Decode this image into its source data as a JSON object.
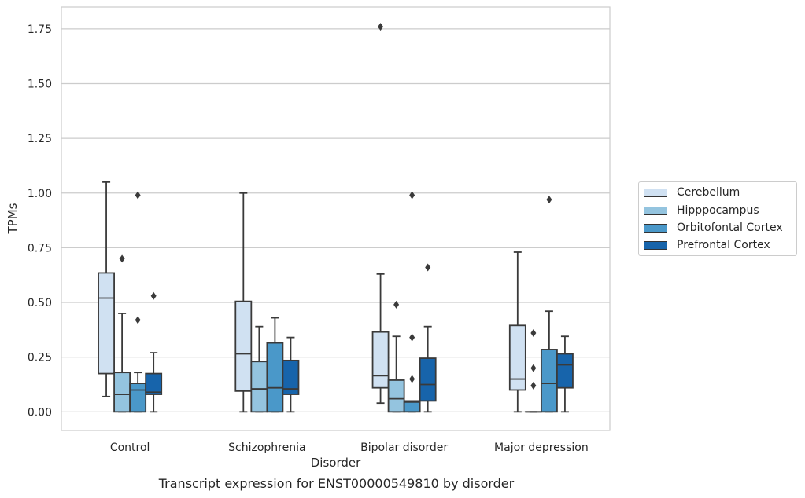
{
  "caption": "Transcript expression for ENST00000549810 by disorder",
  "chart_data": {
    "type": "box",
    "title": "",
    "xlabel": "Disorder",
    "ylabel": "TPMs",
    "ylim": [
      -0.085,
      1.85
    ],
    "yticks": [
      0.0,
      0.25,
      0.5,
      0.75,
      1.0,
      1.25,
      1.5,
      1.75
    ],
    "ytick_labels": [
      "0.00",
      "0.25",
      "0.50",
      "0.75",
      "1.00",
      "1.25",
      "1.50",
      "1.75"
    ],
    "grid": "horizontal",
    "legend_position": "right",
    "categories": [
      "Control",
      "Schizophrenia",
      "Bipolar disorder",
      "Major depression"
    ],
    "series": [
      {
        "name": "Cerebellum",
        "color": "#d0e1f2",
        "boxes": [
          {
            "whislo": 0.07,
            "q1": 0.175,
            "med": 0.52,
            "q3": 0.635,
            "whishi": 1.05,
            "fliers": []
          },
          {
            "whislo": 0.0,
            "q1": 0.095,
            "med": 0.265,
            "q3": 0.505,
            "whishi": 1.0,
            "fliers": []
          },
          {
            "whislo": 0.04,
            "q1": 0.11,
            "med": 0.165,
            "q3": 0.365,
            "whishi": 0.63,
            "fliers": [
              1.76
            ]
          },
          {
            "whislo": 0.0,
            "q1": 0.1,
            "med": 0.15,
            "q3": 0.395,
            "whishi": 0.73,
            "fliers": []
          }
        ]
      },
      {
        "name": "Hipppocampus",
        "color": "#94c4df",
        "boxes": [
          {
            "whislo": 0.0,
            "q1": 0.0,
            "med": 0.08,
            "q3": 0.18,
            "whishi": 0.45,
            "fliers": [
              0.7
            ]
          },
          {
            "whislo": 0.0,
            "q1": 0.0,
            "med": 0.105,
            "q3": 0.23,
            "whishi": 0.39,
            "fliers": []
          },
          {
            "whislo": 0.0,
            "q1": 0.0,
            "med": 0.06,
            "q3": 0.145,
            "whishi": 0.345,
            "fliers": [
              0.49
            ]
          },
          {
            "whislo": 0.0,
            "q1": 0.0,
            "med": 0.0,
            "q3": 0.0,
            "whishi": 0.0,
            "fliers": [
              0.36,
              0.2,
              0.12
            ]
          }
        ]
      },
      {
        "name": "Orbitofontal Cortex",
        "color": "#4a98c9",
        "boxes": [
          {
            "whislo": 0.0,
            "q1": 0.0,
            "med": 0.1,
            "q3": 0.13,
            "whishi": 0.18,
            "fliers": [
              0.99,
              0.42
            ]
          },
          {
            "whislo": 0.0,
            "q1": 0.0,
            "med": 0.11,
            "q3": 0.315,
            "whishi": 0.43,
            "fliers": []
          },
          {
            "whislo": 0.0,
            "q1": 0.0,
            "med": 0.045,
            "q3": 0.05,
            "whishi": 0.05,
            "fliers": [
              0.99,
              0.34,
              0.15
            ]
          },
          {
            "whislo": 0.0,
            "q1": 0.0,
            "med": 0.13,
            "q3": 0.285,
            "whishi": 0.46,
            "fliers": [
              0.97
            ]
          }
        ]
      },
      {
        "name": "Prefrontal Cortex",
        "color": "#1764ab",
        "boxes": [
          {
            "whislo": 0.0,
            "q1": 0.08,
            "med": 0.09,
            "q3": 0.175,
            "whishi": 0.27,
            "fliers": [
              0.53
            ]
          },
          {
            "whislo": 0.0,
            "q1": 0.08,
            "med": 0.105,
            "q3": 0.235,
            "whishi": 0.34,
            "fliers": []
          },
          {
            "whislo": 0.0,
            "q1": 0.05,
            "med": 0.125,
            "q3": 0.245,
            "whishi": 0.39,
            "fliers": [
              0.66
            ]
          },
          {
            "whislo": 0.0,
            "q1": 0.11,
            "med": 0.215,
            "q3": 0.265,
            "whishi": 0.345,
            "fliers": []
          }
        ]
      }
    ]
  }
}
